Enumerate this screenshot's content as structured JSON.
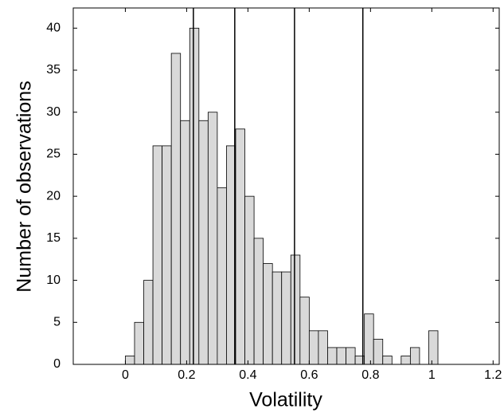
{
  "chart_data": {
    "type": "histogram",
    "xlabel": "Volatility",
    "ylabel": "Number of observations",
    "bins": [
      0,
      0.03,
      0.06,
      0.09,
      0.12,
      0.15,
      0.18,
      0.21,
      0.24,
      0.27,
      0.3,
      0.33,
      0.36,
      0.39,
      0.42,
      0.45,
      0.48,
      0.51,
      0.54,
      0.57,
      0.6,
      0.63,
      0.66,
      0.69,
      0.72,
      0.75,
      0.78,
      0.81,
      0.84,
      0.87,
      0.9,
      0.93,
      0.96,
      0.99,
      1.02
    ],
    "values": [
      1,
      5,
      10,
      26,
      26,
      37,
      29,
      40,
      29,
      30,
      21,
      26,
      28,
      20,
      15,
      12,
      11,
      11,
      13,
      8,
      4,
      4,
      2,
      2,
      2,
      1,
      6,
      3,
      1,
      0,
      1,
      2,
      0,
      4
    ],
    "color": "#d9d9d9",
    "vlines": [
      0.222,
      0.357,
      0.552,
      0.775
    ],
    "xlim": [
      -0.17,
      1.22
    ],
    "ylim": [
      0,
      42.4
    ],
    "xticks": [
      0,
      0.2,
      0.4,
      0.6,
      0.8,
      1,
      1.2
    ],
    "yticks": [
      0,
      5,
      10,
      15,
      20,
      25,
      30,
      35,
      40
    ],
    "grid": false
  }
}
